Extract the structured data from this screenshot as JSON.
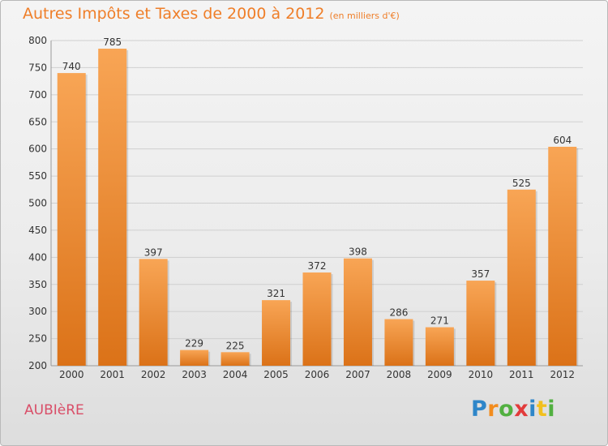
{
  "title": "Autres Impôts et Taxes de 2000 à 2012",
  "unit": "(en milliers d'€)",
  "commune": "AUBIèRE",
  "logo": "Proxiti",
  "colors": {
    "title": "#ef7e28",
    "bar_top": "#f8a555",
    "bar_bottom": "#db7218",
    "commune": "#d94e68",
    "axis_text": "#333333"
  },
  "chart_data": {
    "type": "bar",
    "title": "Autres Impôts et Taxes de 2000 à 2012",
    "categories": [
      "2000",
      "2001",
      "2002",
      "2003",
      "2004",
      "2005",
      "2006",
      "2007",
      "2008",
      "2009",
      "2010",
      "2011",
      "2012"
    ],
    "values": [
      740,
      785,
      397,
      229,
      225,
      321,
      372,
      398,
      286,
      271,
      357,
      525,
      604
    ],
    "ylim": [
      200,
      800
    ],
    "yticks": [
      200,
      250,
      300,
      350,
      400,
      450,
      500,
      550,
      600,
      650,
      700,
      750,
      800
    ],
    "grid": true,
    "xlabel": "",
    "ylabel": ""
  }
}
